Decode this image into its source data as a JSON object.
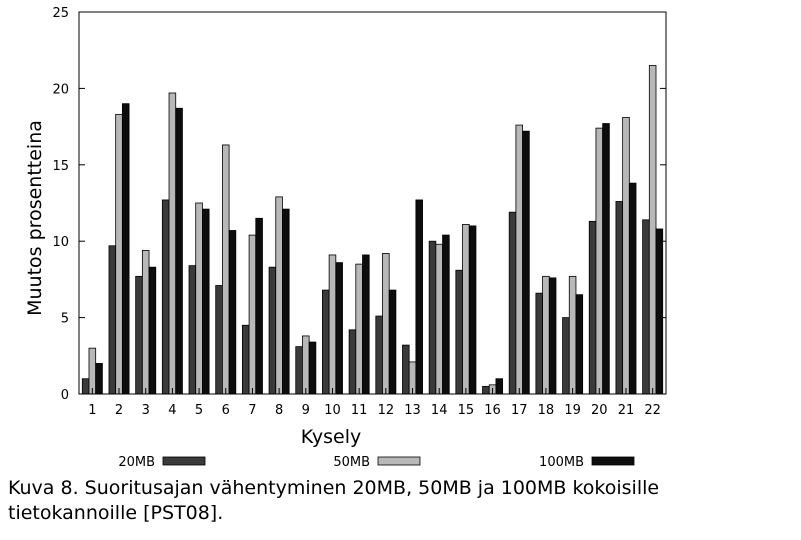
{
  "chart_data": {
    "type": "bar",
    "title": "",
    "xlabel": "Kysely",
    "ylabel": "Muutos prosentteina",
    "ylim": [
      0,
      25
    ],
    "yticks": [
      "0",
      "5",
      "10",
      "15",
      "20",
      "25"
    ],
    "categories": [
      "1",
      "2",
      "3",
      "4",
      "5",
      "6",
      "7",
      "8",
      "9",
      "10",
      "11",
      "12",
      "13",
      "14",
      "15",
      "16",
      "17",
      "18",
      "19",
      "20",
      "21",
      "22"
    ],
    "series": [
      {
        "name": "20MB",
        "color": "#3a3a3a",
        "values": [
          1.0,
          9.7,
          7.7,
          12.7,
          8.4,
          7.1,
          4.5,
          8.3,
          3.1,
          6.8,
          4.2,
          5.1,
          3.2,
          10.0,
          8.1,
          0.5,
          11.9,
          6.6,
          5.0,
          11.3,
          12.6,
          11.4
        ]
      },
      {
        "name": "50MB",
        "color": "#b8b8b8",
        "values": [
          3.0,
          18.3,
          9.4,
          19.7,
          12.5,
          16.3,
          10.4,
          12.9,
          3.8,
          9.1,
          8.5,
          9.2,
          2.1,
          9.8,
          11.1,
          0.6,
          17.6,
          7.7,
          7.7,
          17.4,
          18.1,
          21.5
        ]
      },
      {
        "name": "100MB",
        "color": "#0d0d0d",
        "values": [
          2.0,
          19.0,
          8.3,
          18.7,
          12.1,
          10.7,
          11.5,
          12.1,
          3.4,
          8.6,
          9.1,
          6.8,
          12.7,
          10.4,
          11.0,
          1.0,
          17.2,
          7.6,
          6.5,
          17.7,
          13.8,
          10.8
        ]
      }
    ],
    "legend": {
      "position": "bottom",
      "items": [
        "20MB",
        "50MB",
        "100MB"
      ]
    }
  },
  "caption": "Kuva 8. Suoritusajan vähentyminen 20MB, 50MB ja 100MB kokoisille tietokannoille [PST08]."
}
